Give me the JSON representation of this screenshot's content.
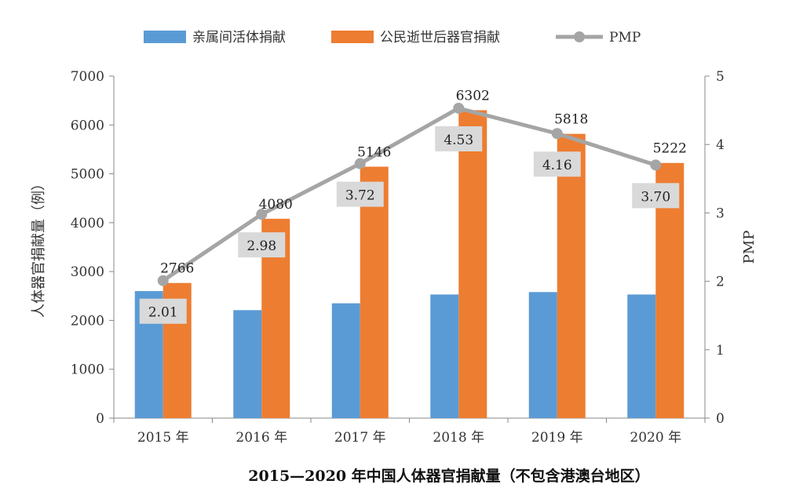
{
  "chart_data": {
    "type": "bar",
    "title": "2015—2020 年中国人体器官捐献量（不包含港澳台地区）",
    "categories": [
      "2015 年",
      "2016 年",
      "2017 年",
      "2018 年",
      "2019 年",
      "2020 年"
    ],
    "ylabel": "人体器官捐献量（例）",
    "y2label": "PMP",
    "ylim": [
      0,
      7000
    ],
    "yticks": [
      "0",
      "1000",
      "2000",
      "3000",
      "4000",
      "5000",
      "6000",
      "7000"
    ],
    "y2lim": [
      0,
      5
    ],
    "y2ticks": [
      "0",
      "1",
      "2",
      "3",
      "4",
      "5"
    ],
    "series": [
      {
        "name": "亲属间活体捐献",
        "kind": "bar",
        "color": "#5B9BD5",
        "values": [
          2600,
          2210,
          2350,
          2530,
          2580,
          2530
        ]
      },
      {
        "name": "公民逝世后器官捐献",
        "kind": "bar",
        "color": "#ED7D31",
        "values": [
          2766,
          4080,
          5146,
          6302,
          5818,
          5222
        ],
        "labels": [
          "2766",
          "4080",
          "5146",
          "6302",
          "5818",
          "5222"
        ]
      },
      {
        "name": "PMP",
        "kind": "line",
        "axis": "secondary",
        "color": "#A5A5A5",
        "values": [
          2.01,
          2.98,
          3.72,
          4.53,
          4.16,
          3.7
        ],
        "labels": [
          "2.01",
          "2.98",
          "3.72",
          "4.53",
          "4.16",
          "3.70"
        ]
      }
    ],
    "grid": false,
    "legend": "top"
  }
}
